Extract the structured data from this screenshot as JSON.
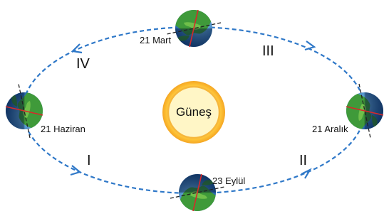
{
  "sun": {
    "label": "Güneş"
  },
  "positions": [
    {
      "label": "21 Mart"
    },
    {
      "label": "21 Haziran"
    },
    {
      "label": "23 Eylül"
    },
    {
      "label": "21 Aralık"
    }
  ],
  "segments": [
    {
      "label": "IV"
    },
    {
      "label": "I"
    },
    {
      "label": "II"
    },
    {
      "label": "III"
    }
  ]
}
